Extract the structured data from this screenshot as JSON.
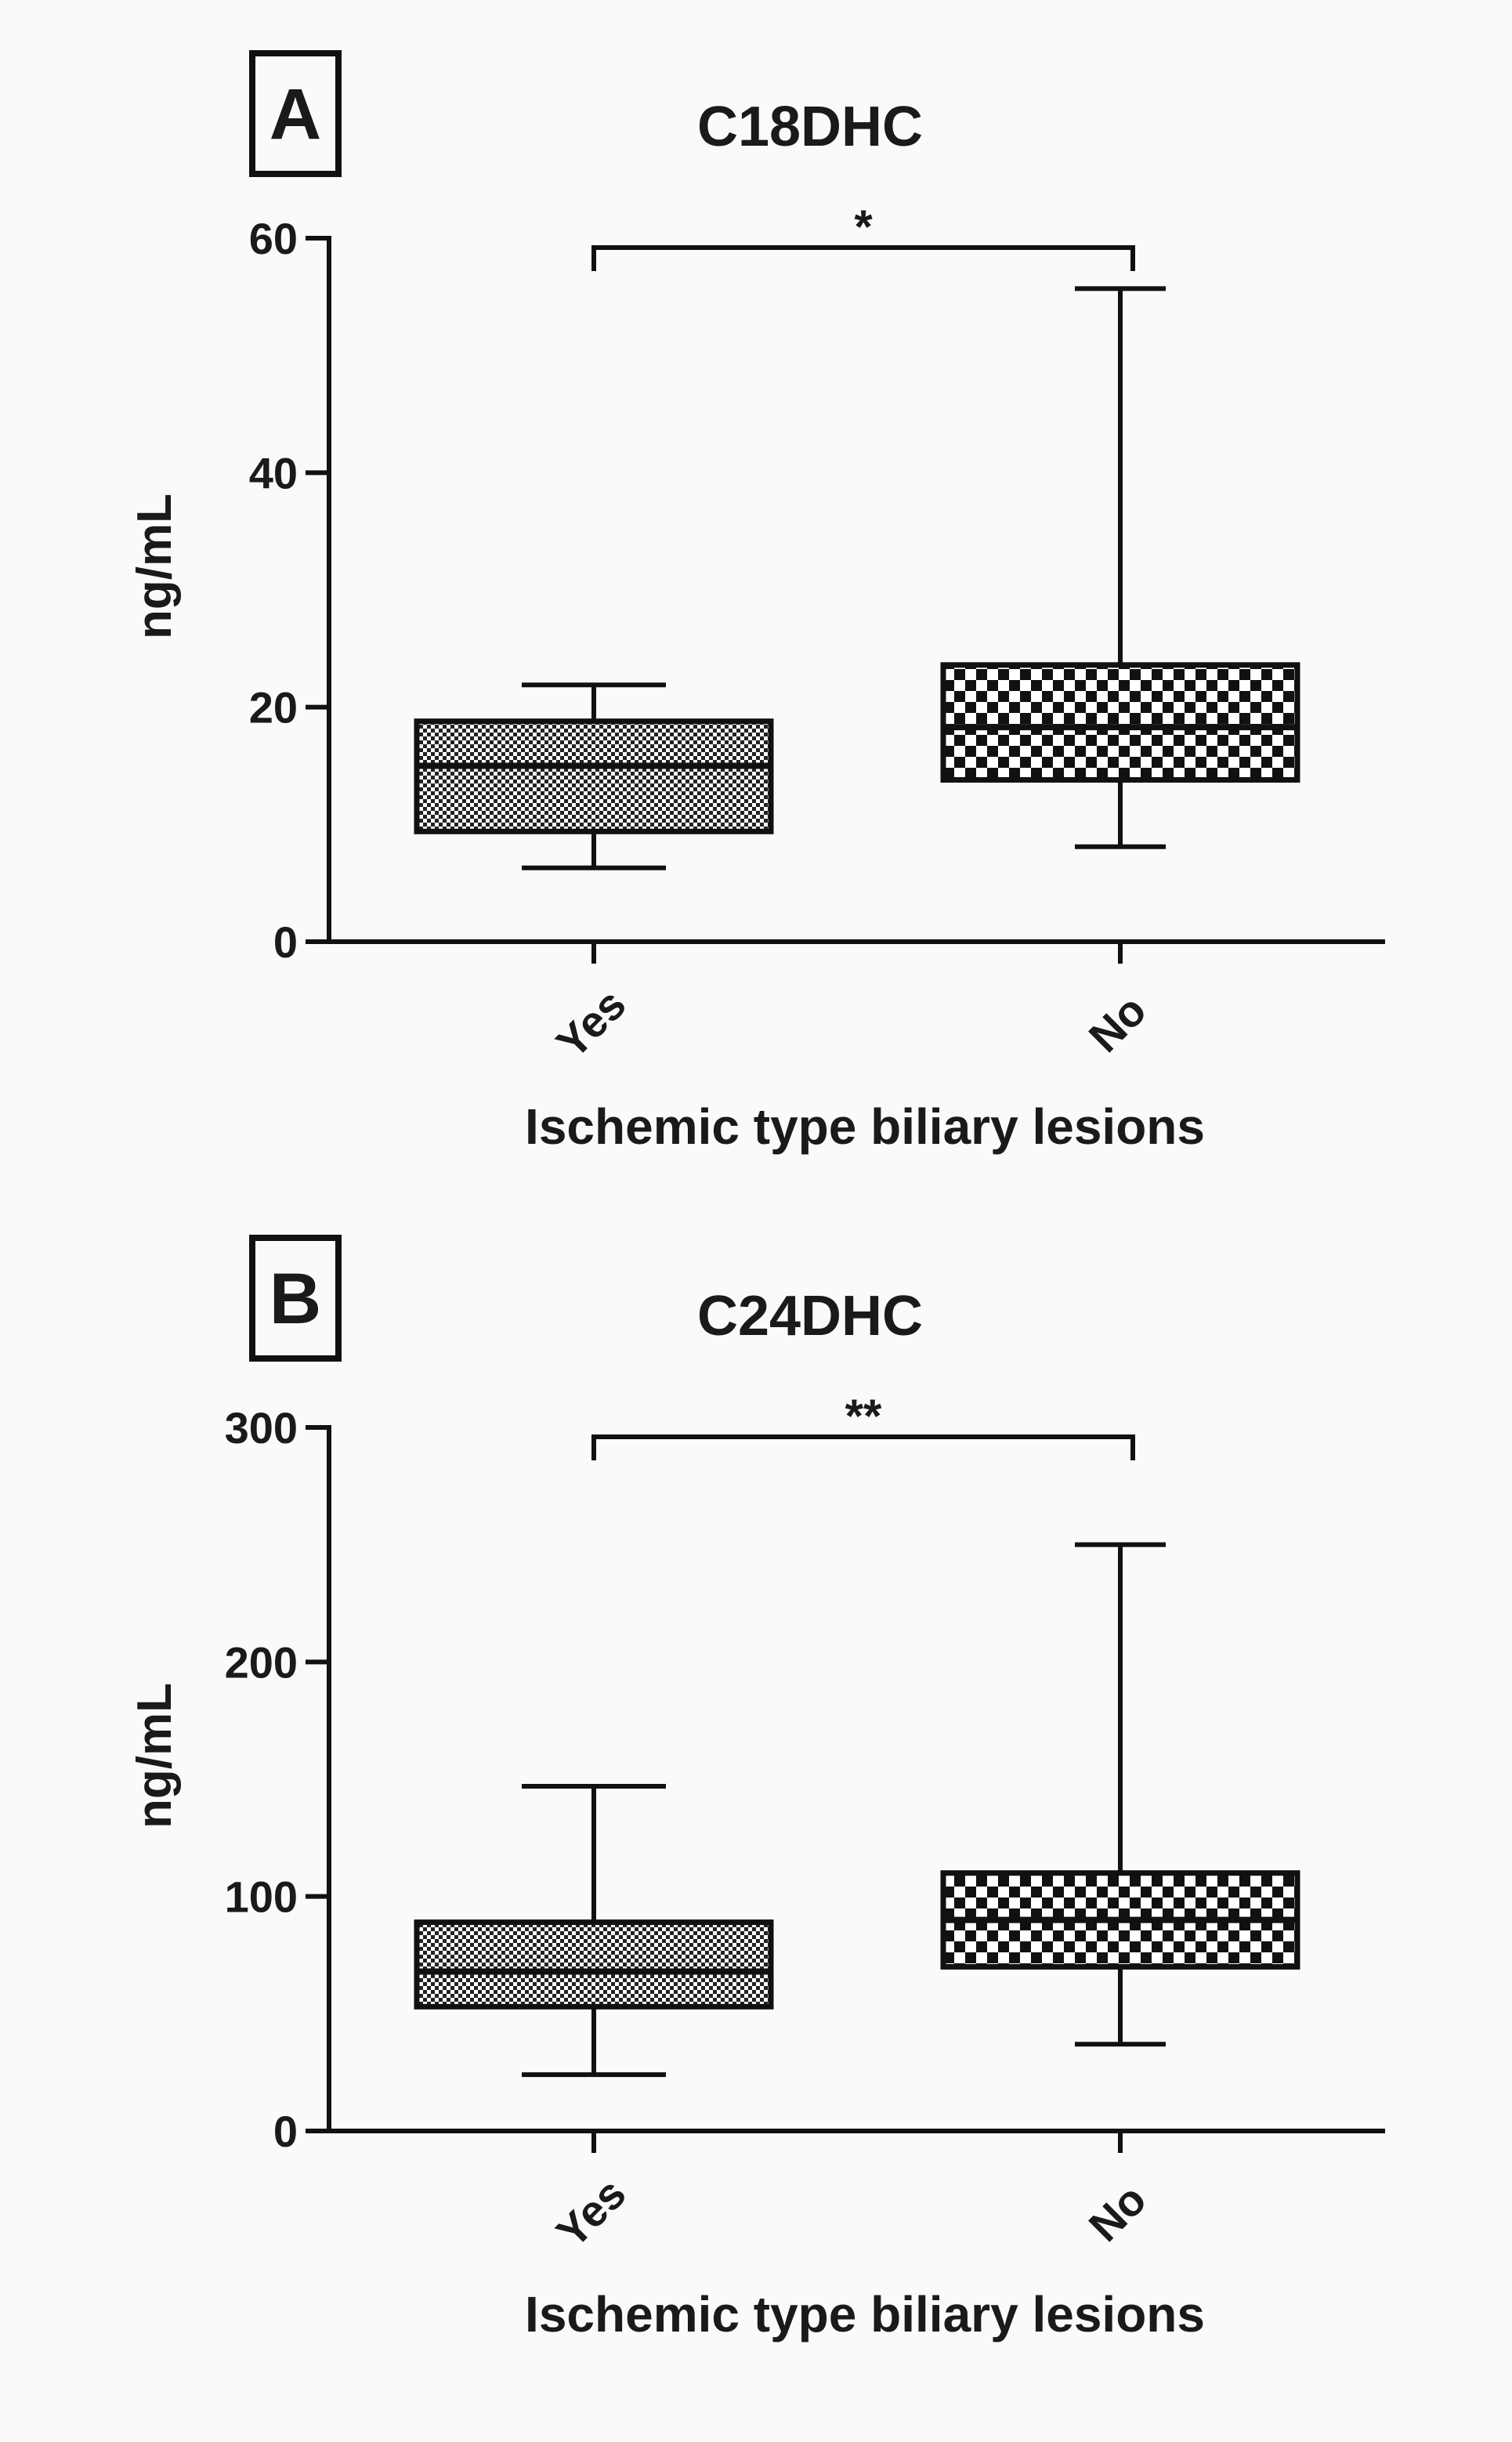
{
  "chart_data": [
    {
      "type": "box",
      "panel_label": "A",
      "title": "C18DHC",
      "ylabel": "ng/mL",
      "xlabel": "Ischemic type biliary lesions",
      "ylim": [
        0,
        60
      ],
      "yticks": [
        "0",
        "20",
        "40",
        "60"
      ],
      "yticks_values": [
        0,
        20,
        40,
        60
      ],
      "categories": [
        "Yes",
        "No"
      ],
      "boxes": [
        {
          "category": "Yes",
          "min": 6.3,
          "q1": 9.4,
          "median": 15.0,
          "q3": 18.8,
          "max": 21.9,
          "pattern": "fine-checker"
        },
        {
          "category": "No",
          "min": 8.1,
          "q1": 13.8,
          "median": 18.3,
          "q3": 23.6,
          "max": 55.7,
          "pattern": "coarse-checker"
        }
      ],
      "significance": {
        "between": [
          "Yes",
          "No"
        ],
        "label": "*",
        "y": 59.2
      }
    },
    {
      "type": "box",
      "panel_label": "B",
      "title": "C24DHC",
      "ylabel": "ng/mL",
      "xlabel": "Ischemic type biliary lesions",
      "ylim": [
        0,
        300
      ],
      "yticks": [
        "0",
        "100",
        "200",
        "300"
      ],
      "yticks_values": [
        0,
        100,
        200,
        300
      ],
      "categories": [
        "Yes",
        "No"
      ],
      "boxes": [
        {
          "category": "Yes",
          "min": 24,
          "q1": 53,
          "median": 68,
          "q3": 89,
          "max": 147,
          "pattern": "fine-checker"
        },
        {
          "category": "No",
          "min": 37,
          "q1": 70,
          "median": 90,
          "q3": 110,
          "max": 250,
          "pattern": "coarse-checker"
        }
      ],
      "significance": {
        "between": [
          "Yes",
          "No"
        ],
        "label": "**",
        "y": 296
      }
    }
  ]
}
